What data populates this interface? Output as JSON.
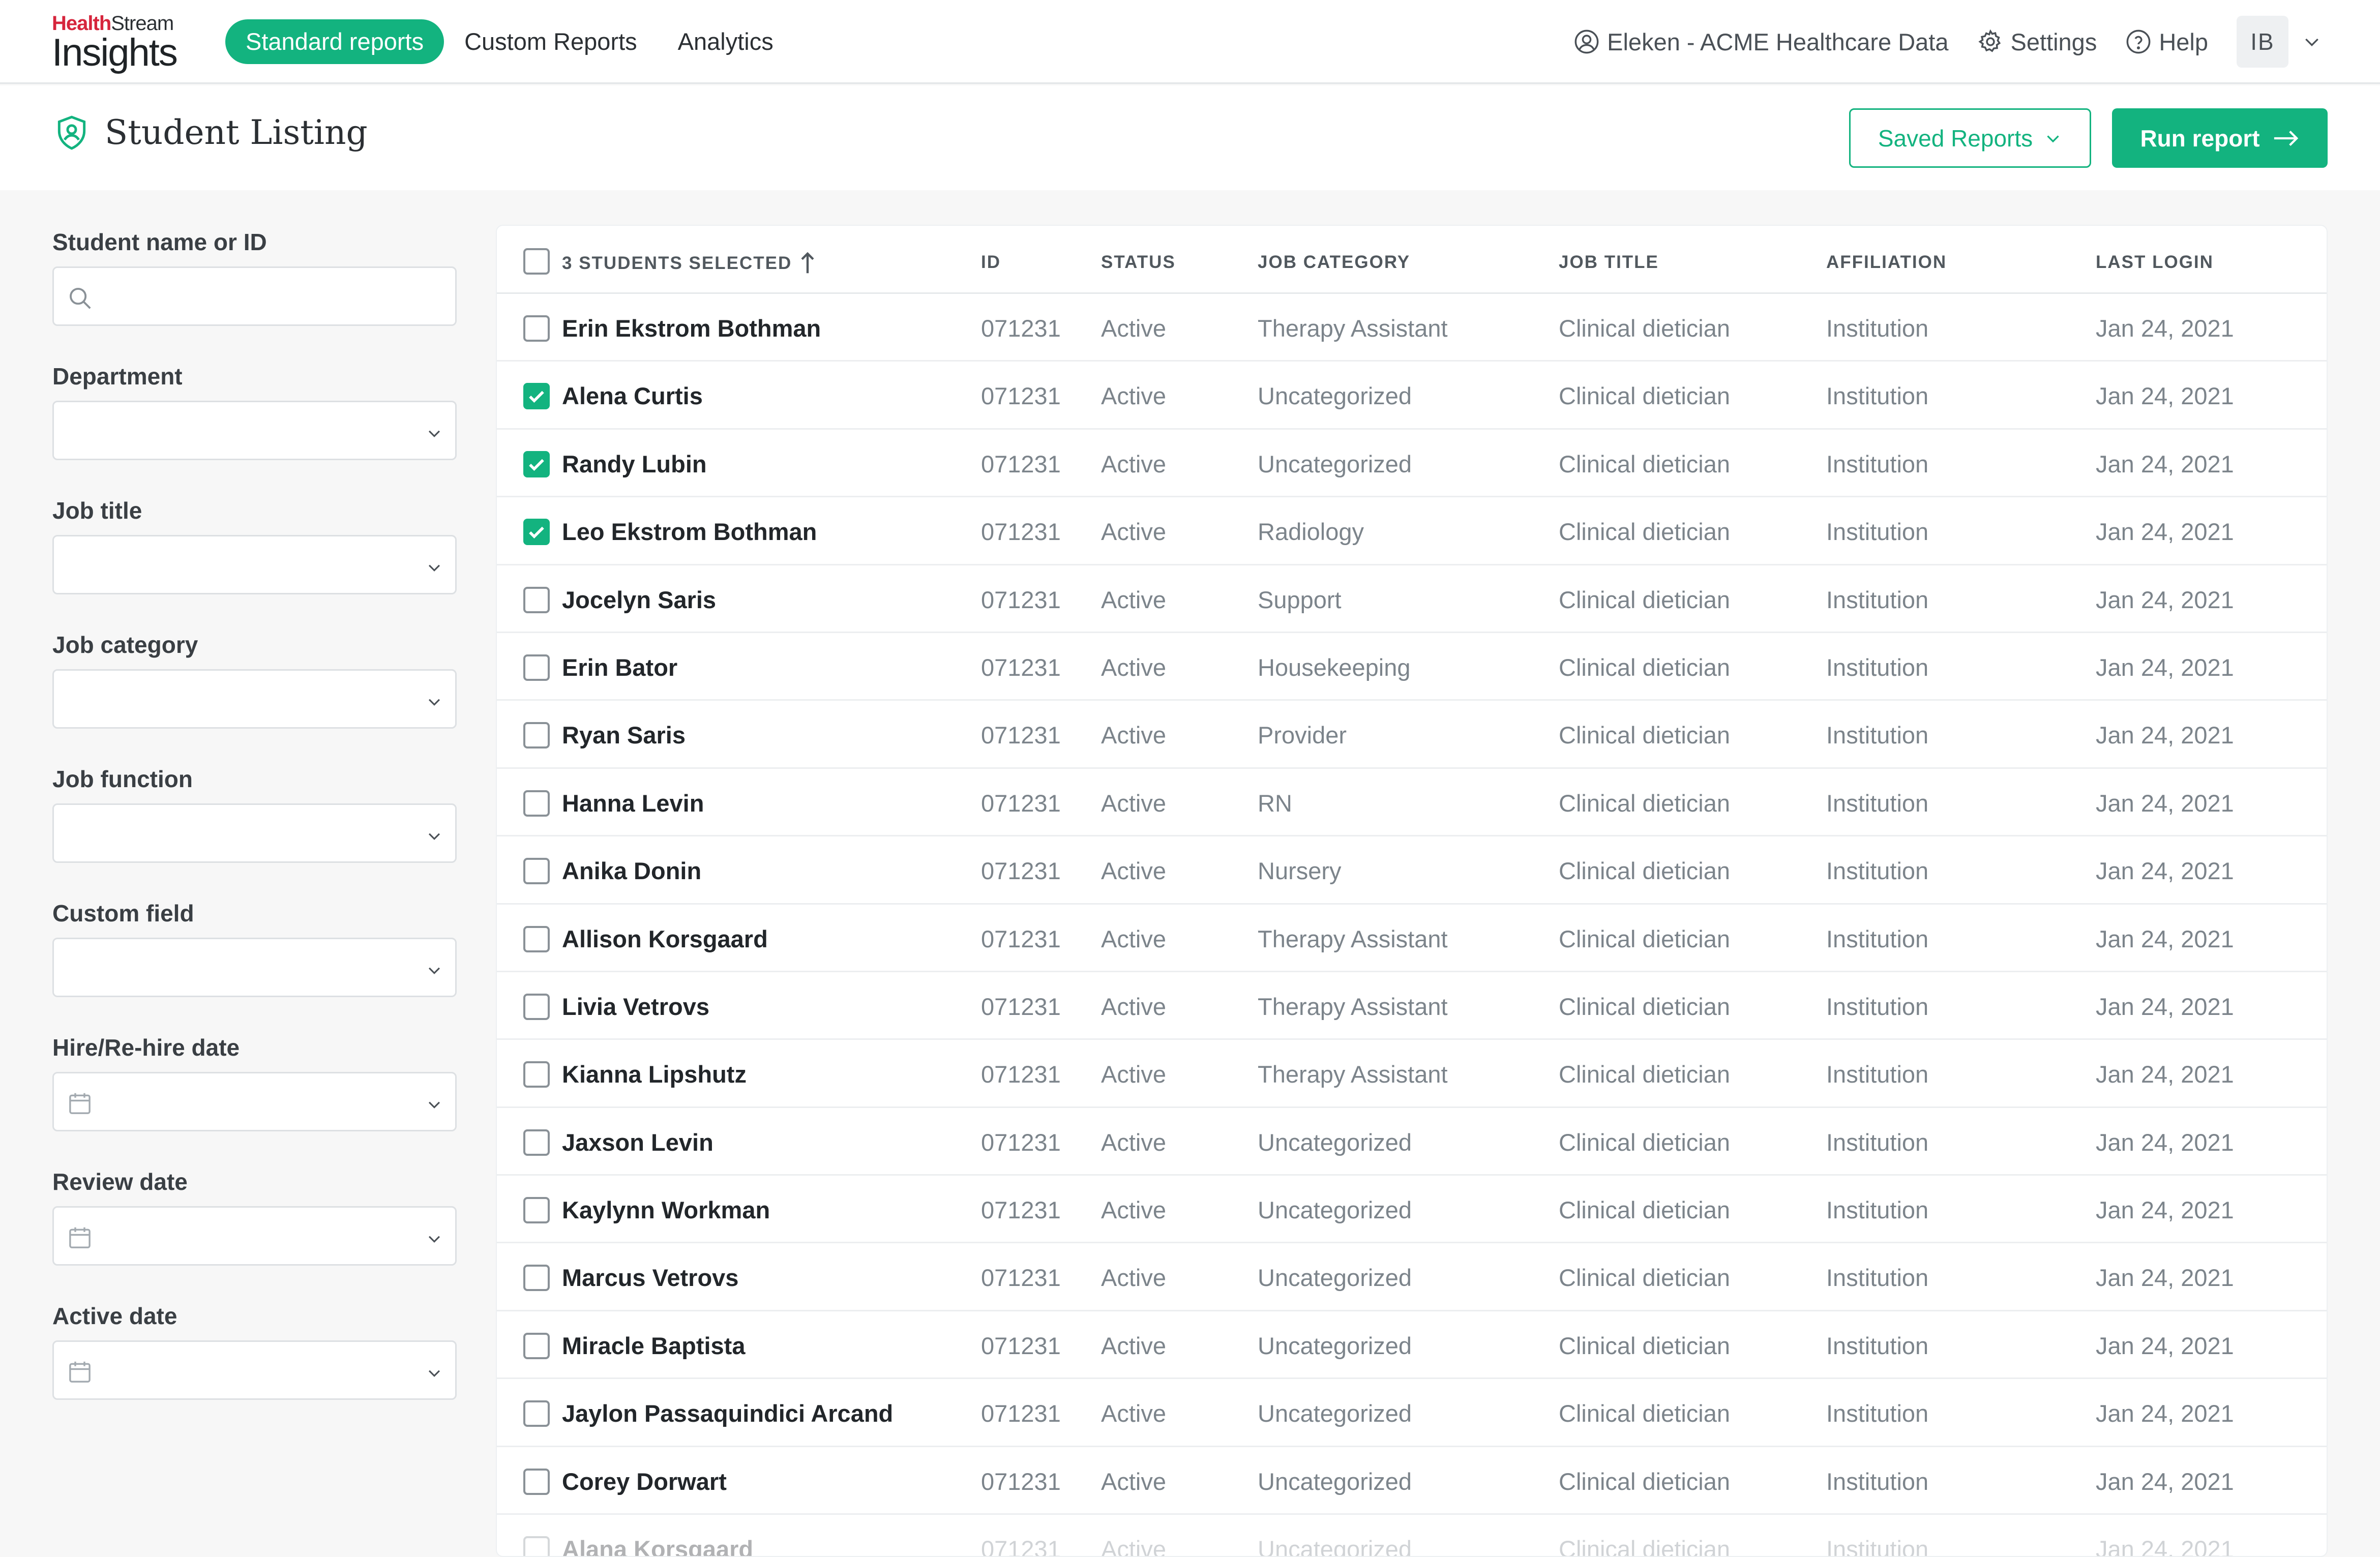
{
  "brand": {
    "top_red": "Health",
    "top_dark": "Stream",
    "main": "Insights"
  },
  "nav": {
    "tabs": [
      {
        "label": "Standard reports",
        "active": true
      },
      {
        "label": "Custom Reports",
        "active": false
      },
      {
        "label": "Analytics",
        "active": false
      }
    ],
    "org": "Eleken - ACME Healthcare Data",
    "settings": "Settings",
    "help": "Help",
    "avatar_initials": "IB"
  },
  "page": {
    "title": "Student Listing",
    "saved_reports": "Saved Reports",
    "run_report": "Run report"
  },
  "filters": [
    {
      "label": "Student name or ID",
      "kind": "search"
    },
    {
      "label": "Department",
      "kind": "select"
    },
    {
      "label": "Job title",
      "kind": "select"
    },
    {
      "label": "Job category",
      "kind": "select"
    },
    {
      "label": "Job function",
      "kind": "select"
    },
    {
      "label": "Custom field",
      "kind": "select"
    },
    {
      "label": "Hire/Re-hire date",
      "kind": "date"
    },
    {
      "label": "Review date",
      "kind": "date"
    },
    {
      "label": "Active date",
      "kind": "date"
    }
  ],
  "table": {
    "selection_label": "3 STUDENTS SELECTED",
    "columns": {
      "id": "ID",
      "status": "STATUS",
      "category": "JOB CATEGORY",
      "title": "JOB TITLE",
      "affiliation": "AFFILIATION",
      "last_login": "LAST LOGIN"
    },
    "rows": [
      {
        "checked": false,
        "name": "Erin Ekstrom Bothman",
        "id": "071231",
        "status": "Active",
        "category": "Therapy Assistant",
        "title": "Clinical dietician",
        "affiliation": "Institution",
        "last_login": "Jan 24, 2021"
      },
      {
        "checked": true,
        "name": "Alena Curtis",
        "id": "071231",
        "status": "Active",
        "category": "Uncategorized",
        "title": "Clinical dietician",
        "affiliation": "Institution",
        "last_login": "Jan 24, 2021"
      },
      {
        "checked": true,
        "name": "Randy Lubin",
        "id": "071231",
        "status": "Active",
        "category": "Uncategorized",
        "title": "Clinical dietician",
        "affiliation": "Institution",
        "last_login": "Jan 24, 2021"
      },
      {
        "checked": true,
        "name": "Leo Ekstrom Bothman",
        "id": "071231",
        "status": "Active",
        "category": "Radiology",
        "title": "Clinical dietician",
        "affiliation": "Institution",
        "last_login": "Jan 24, 2021"
      },
      {
        "checked": false,
        "name": "Jocelyn Saris",
        "id": "071231",
        "status": "Active",
        "category": "Support",
        "title": "Clinical dietician",
        "affiliation": "Institution",
        "last_login": "Jan 24, 2021"
      },
      {
        "checked": false,
        "name": "Erin Bator",
        "id": "071231",
        "status": "Active",
        "category": "Housekeeping",
        "title": "Clinical dietician",
        "affiliation": "Institution",
        "last_login": "Jan 24, 2021"
      },
      {
        "checked": false,
        "name": "Ryan Saris",
        "id": "071231",
        "status": "Active",
        "category": "Provider",
        "title": "Clinical dietician",
        "affiliation": "Institution",
        "last_login": "Jan 24, 2021"
      },
      {
        "checked": false,
        "name": "Hanna Levin",
        "id": "071231",
        "status": "Active",
        "category": "RN",
        "title": "Clinical dietician",
        "affiliation": "Institution",
        "last_login": "Jan 24, 2021"
      },
      {
        "checked": false,
        "name": "Anika Donin",
        "id": "071231",
        "status": "Active",
        "category": "Nursery",
        "title": "Clinical dietician",
        "affiliation": "Institution",
        "last_login": "Jan 24, 2021"
      },
      {
        "checked": false,
        "name": "Allison Korsgaard",
        "id": "071231",
        "status": "Active",
        "category": "Therapy Assistant",
        "title": "Clinical dietician",
        "affiliation": "Institution",
        "last_login": "Jan 24, 2021"
      },
      {
        "checked": false,
        "name": "Livia Vetrovs",
        "id": "071231",
        "status": "Active",
        "category": "Therapy Assistant",
        "title": "Clinical dietician",
        "affiliation": "Institution",
        "last_login": "Jan 24, 2021"
      },
      {
        "checked": false,
        "name": "Kianna Lipshutz",
        "id": "071231",
        "status": "Active",
        "category": "Therapy Assistant",
        "title": "Clinical dietician",
        "affiliation": "Institution",
        "last_login": "Jan 24, 2021"
      },
      {
        "checked": false,
        "name": "Jaxson Levin",
        "id": "071231",
        "status": "Active",
        "category": "Uncategorized",
        "title": "Clinical dietician",
        "affiliation": "Institution",
        "last_login": "Jan 24, 2021"
      },
      {
        "checked": false,
        "name": "Kaylynn Workman",
        "id": "071231",
        "status": "Active",
        "category": "Uncategorized",
        "title": "Clinical dietician",
        "affiliation": "Institution",
        "last_login": "Jan 24, 2021"
      },
      {
        "checked": false,
        "name": "Marcus Vetrovs",
        "id": "071231",
        "status": "Active",
        "category": "Uncategorized",
        "title": "Clinical dietician",
        "affiliation": "Institution",
        "last_login": "Jan 24, 2021"
      },
      {
        "checked": false,
        "name": "Miracle Baptista",
        "id": "071231",
        "status": "Active",
        "category": "Uncategorized",
        "title": "Clinical dietician",
        "affiliation": "Institution",
        "last_login": "Jan 24, 2021"
      },
      {
        "checked": false,
        "name": "Jaylon Passaquindici Arcand",
        "id": "071231",
        "status": "Active",
        "category": "Uncategorized",
        "title": "Clinical dietician",
        "affiliation": "Institution",
        "last_login": "Jan 24, 2021"
      },
      {
        "checked": false,
        "name": "Corey Dorwart",
        "id": "071231",
        "status": "Active",
        "category": "Uncategorized",
        "title": "Clinical dietician",
        "affiliation": "Institution",
        "last_login": "Jan 24, 2021"
      },
      {
        "checked": false,
        "name": "Alana Korsgaard",
        "id": "071231",
        "status": "Active",
        "category": "Uncategorized",
        "title": "Clinical dietician",
        "affiliation": "Institution",
        "last_login": "Jan 24, 2021"
      }
    ]
  },
  "colors": {
    "accent": "#13b37f",
    "brand_red": "#d6253c"
  }
}
